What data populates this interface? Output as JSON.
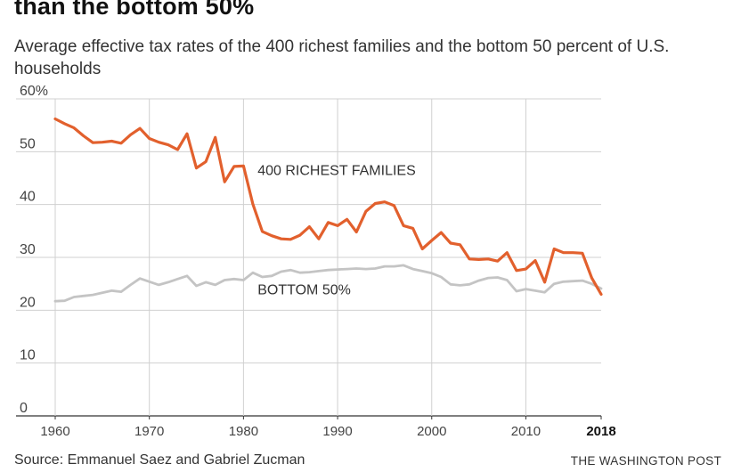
{
  "headline": "than the bottom 50%",
  "subtitle": "Average effective tax rates of the 400 richest families and the bottom 50 percent of U.S. households",
  "source": "Source: Emmanuel Saez and Gabriel Zucman",
  "credit": "THE WASHINGTON POST",
  "chart_data": {
    "type": "line",
    "ylim": [
      0,
      60
    ],
    "xlim": [
      1960,
      2018
    ],
    "y_ticks": [
      0,
      10,
      20,
      30,
      40,
      50,
      60
    ],
    "y_tick_labels": [
      "0",
      "10",
      "20",
      "30",
      "40",
      "50",
      "60%"
    ],
    "x_ticks": [
      1960,
      1970,
      1980,
      1990,
      2000,
      2010,
      2018
    ],
    "x_tick_labels": [
      "1960",
      "1970",
      "1980",
      "1990",
      "2000",
      "2010",
      "2018"
    ],
    "grid": "vertical and horizontal",
    "series": [
      {
        "name": "400 RICHEST FAMILIES",
        "color": "#e2602d",
        "x": [
          1960,
          1961,
          1962,
          1963,
          1964,
          1965,
          1966,
          1967,
          1968,
          1969,
          1970,
          1971,
          1972,
          1973,
          1974,
          1975,
          1976,
          1977,
          1978,
          1979,
          1980,
          1981,
          1982,
          1983,
          1984,
          1985,
          1986,
          1987,
          1988,
          1989,
          1990,
          1991,
          1992,
          1993,
          1994,
          1995,
          1996,
          1997,
          1998,
          1999,
          2000,
          2001,
          2002,
          2003,
          2004,
          2005,
          2006,
          2007,
          2008,
          2009,
          2010,
          2011,
          2012,
          2013,
          2014,
          2015,
          2016,
          2017,
          2018
        ],
        "values": [
          56.2,
          55.3,
          54.5,
          53.0,
          51.7,
          51.8,
          52.0,
          51.6,
          53.2,
          54.4,
          52.5,
          51.8,
          51.3,
          50.4,
          53.4,
          46.9,
          48.1,
          52.7,
          44.3,
          47.2,
          47.3,
          40.1,
          34.9,
          34.1,
          33.5,
          33.4,
          34.2,
          35.8,
          33.5,
          36.6,
          36.0,
          37.2,
          34.8,
          38.7,
          40.2,
          40.5,
          39.8,
          36.0,
          35.5,
          31.6,
          33.2,
          34.7,
          32.7,
          32.4,
          29.7,
          29.6,
          29.7,
          29.3,
          30.9,
          27.5,
          27.8,
          29.4,
          25.3,
          31.6,
          30.9,
          30.9,
          30.8,
          26.1,
          23.0
        ]
      },
      {
        "name": "BOTTOM 50%",
        "color": "#c4c4c4",
        "x": [
          1960,
          1961,
          1962,
          1963,
          1964,
          1965,
          1966,
          1967,
          1968,
          1969,
          1970,
          1971,
          1972,
          1973,
          1974,
          1975,
          1976,
          1977,
          1978,
          1979,
          1980,
          1981,
          1982,
          1983,
          1984,
          1985,
          1986,
          1987,
          1988,
          1989,
          1990,
          1991,
          1992,
          1993,
          1994,
          1995,
          1996,
          1997,
          1998,
          1999,
          2000,
          2001,
          2002,
          2003,
          2004,
          2005,
          2006,
          2007,
          2008,
          2009,
          2010,
          2011,
          2012,
          2013,
          2014,
          2015,
          2016,
          2017,
          2018
        ],
        "values": [
          21.7,
          21.8,
          22.5,
          22.7,
          22.9,
          23.3,
          23.7,
          23.5,
          24.8,
          26.0,
          25.4,
          24.8,
          25.3,
          25.9,
          26.5,
          24.6,
          25.3,
          24.8,
          25.7,
          25.9,
          25.7,
          27.1,
          26.3,
          26.5,
          27.3,
          27.6,
          27.1,
          27.2,
          27.4,
          27.6,
          27.7,
          27.8,
          27.9,
          27.8,
          27.9,
          28.3,
          28.3,
          28.5,
          27.8,
          27.4,
          27.0,
          26.3,
          24.9,
          24.7,
          24.9,
          25.6,
          26.1,
          26.2,
          25.7,
          23.6,
          24.0,
          23.7,
          23.4,
          25.0,
          25.4,
          25.5,
          25.6,
          25.0,
          24.1
        ]
      }
    ]
  }
}
